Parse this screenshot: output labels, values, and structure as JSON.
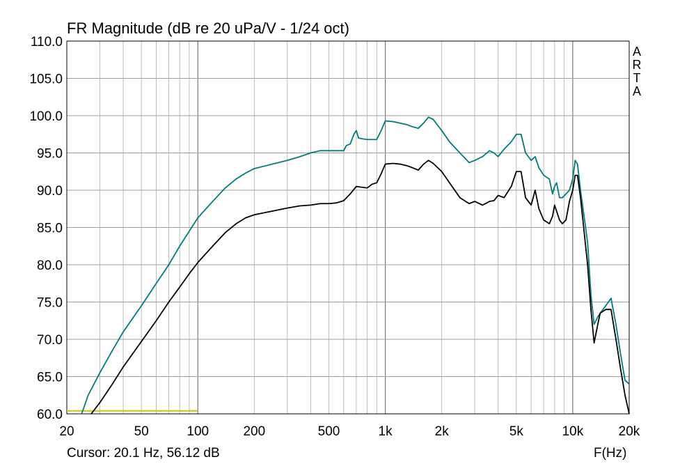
{
  "chart_data": {
    "type": "line",
    "title": "FR Magnitude (dB re 20 uPa/V - 1/24 oct)",
    "xlabel": "F(Hz)",
    "ylabel": "",
    "xscale": "log",
    "xlim": [
      20,
      20000
    ],
    "ylim": [
      60,
      110
    ],
    "grid": true,
    "x_ticks": [
      {
        "value": 20,
        "label": "20"
      },
      {
        "value": 50,
        "label": "50"
      },
      {
        "value": 100,
        "label": "100"
      },
      {
        "value": 200,
        "label": "200"
      },
      {
        "value": 500,
        "label": "500"
      },
      {
        "value": 1000,
        "label": "1k"
      },
      {
        "value": 2000,
        "label": "2k"
      },
      {
        "value": 5000,
        "label": "5k"
      },
      {
        "value": 10000,
        "label": "10k"
      },
      {
        "value": 20000,
        "label": "20k"
      }
    ],
    "y_ticks": [
      {
        "value": 60,
        "label": "60.0"
      },
      {
        "value": 65,
        "label": "65.0"
      },
      {
        "value": 70,
        "label": "70.0"
      },
      {
        "value": 75,
        "label": "75.0"
      },
      {
        "value": 80,
        "label": "80.0"
      },
      {
        "value": 85,
        "label": "85.0"
      },
      {
        "value": 90,
        "label": "90.0"
      },
      {
        "value": 95,
        "label": "95.0"
      },
      {
        "value": 100,
        "label": "100.0"
      },
      {
        "value": 105,
        "label": "105.0"
      },
      {
        "value": 110,
        "label": "110.0"
      }
    ],
    "series": [
      {
        "color": "#007b7b",
        "points": [
          [
            24,
            60
          ],
          [
            26,
            62.5
          ],
          [
            30,
            65.5
          ],
          [
            35,
            68.5
          ],
          [
            40,
            71
          ],
          [
            50,
            74.5
          ],
          [
            60,
            77.5
          ],
          [
            70,
            80
          ],
          [
            80,
            82.5
          ],
          [
            90,
            84.5
          ],
          [
            100,
            86.3
          ],
          [
            120,
            88.5
          ],
          [
            140,
            90.3
          ],
          [
            160,
            91.5
          ],
          [
            180,
            92.3
          ],
          [
            200,
            92.9
          ],
          [
            250,
            93.5
          ],
          [
            300,
            94
          ],
          [
            350,
            94.5
          ],
          [
            400,
            95
          ],
          [
            450,
            95.3
          ],
          [
            500,
            95.3
          ],
          [
            550,
            95.3
          ],
          [
            600,
            95.3
          ],
          [
            620,
            96
          ],
          [
            650,
            96.2
          ],
          [
            680,
            97.5
          ],
          [
            700,
            98
          ],
          [
            720,
            97
          ],
          [
            750,
            96.9
          ],
          [
            800,
            96.8
          ],
          [
            850,
            96.8
          ],
          [
            900,
            96.8
          ],
          [
            950,
            98
          ],
          [
            1000,
            99.3
          ],
          [
            1100,
            99.2
          ],
          [
            1200,
            99
          ],
          [
            1300,
            98.8
          ],
          [
            1400,
            98.5
          ],
          [
            1500,
            98.3
          ],
          [
            1600,
            99
          ],
          [
            1700,
            99.8
          ],
          [
            1800,
            99.5
          ],
          [
            2000,
            98
          ],
          [
            2200,
            96.5
          ],
          [
            2500,
            95
          ],
          [
            2800,
            93.7
          ],
          [
            3000,
            94
          ],
          [
            3300,
            94.5
          ],
          [
            3600,
            95.3
          ],
          [
            3800,
            95
          ],
          [
            4000,
            94.5
          ],
          [
            4300,
            95.5
          ],
          [
            4700,
            96.5
          ],
          [
            5000,
            97.5
          ],
          [
            5300,
            97.5
          ],
          [
            5600,
            95
          ],
          [
            6000,
            94
          ],
          [
            6300,
            94.5
          ],
          [
            6600,
            93
          ],
          [
            7000,
            92
          ],
          [
            7500,
            91.5
          ],
          [
            7800,
            89.5
          ],
          [
            8000,
            90.5
          ],
          [
            8200,
            91
          ],
          [
            8500,
            89
          ],
          [
            8800,
            89
          ],
          [
            9200,
            89.5
          ],
          [
            9600,
            90
          ],
          [
            10000,
            91.5
          ],
          [
            10300,
            94
          ],
          [
            10600,
            93.5
          ],
          [
            11000,
            90
          ],
          [
            12000,
            83
          ],
          [
            12500,
            76
          ],
          [
            13000,
            72
          ],
          [
            13600,
            73
          ],
          [
            14000,
            73.5
          ],
          [
            15000,
            74.5
          ],
          [
            16000,
            75.5
          ],
          [
            17000,
            72
          ],
          [
            18000,
            68
          ],
          [
            19000,
            64.5
          ],
          [
            20000,
            64
          ]
        ]
      },
      {
        "color": "#000000",
        "points": [
          [
            27,
            60
          ],
          [
            30,
            61.5
          ],
          [
            35,
            64
          ],
          [
            40,
            66.3
          ],
          [
            50,
            69.7
          ],
          [
            60,
            72.5
          ],
          [
            70,
            75
          ],
          [
            80,
            77
          ],
          [
            90,
            78.8
          ],
          [
            100,
            80.3
          ],
          [
            120,
            82.5
          ],
          [
            140,
            84.3
          ],
          [
            160,
            85.5
          ],
          [
            180,
            86.3
          ],
          [
            200,
            86.7
          ],
          [
            250,
            87.2
          ],
          [
            300,
            87.6
          ],
          [
            350,
            87.9
          ],
          [
            400,
            88
          ],
          [
            450,
            88.2
          ],
          [
            500,
            88.2
          ],
          [
            550,
            88.3
          ],
          [
            600,
            88.6
          ],
          [
            650,
            89.5
          ],
          [
            700,
            90.5
          ],
          [
            750,
            90.4
          ],
          [
            800,
            90.3
          ],
          [
            850,
            90.8
          ],
          [
            900,
            91
          ],
          [
            950,
            92.2
          ],
          [
            1000,
            93.5
          ],
          [
            1100,
            93.6
          ],
          [
            1200,
            93.5
          ],
          [
            1300,
            93.3
          ],
          [
            1400,
            93
          ],
          [
            1500,
            92.7
          ],
          [
            1600,
            93.5
          ],
          [
            1700,
            94
          ],
          [
            1800,
            93.6
          ],
          [
            2000,
            92.5
          ],
          [
            2200,
            91
          ],
          [
            2500,
            89
          ],
          [
            2800,
            88.2
          ],
          [
            3000,
            88.5
          ],
          [
            3300,
            88
          ],
          [
            3600,
            88.5
          ],
          [
            3800,
            88.6
          ],
          [
            4000,
            89.3
          ],
          [
            4300,
            89
          ],
          [
            4700,
            90.5
          ],
          [
            5000,
            92.5
          ],
          [
            5300,
            92.5
          ],
          [
            5600,
            89
          ],
          [
            6000,
            88
          ],
          [
            6300,
            90
          ],
          [
            6600,
            87.5
          ],
          [
            7000,
            86
          ],
          [
            7500,
            85.5
          ],
          [
            7800,
            86.5
          ],
          [
            8000,
            88
          ],
          [
            8500,
            86
          ],
          [
            8800,
            85.5
          ],
          [
            9200,
            86
          ],
          [
            9600,
            88.5
          ],
          [
            10000,
            90
          ],
          [
            10300,
            92
          ],
          [
            10600,
            92
          ],
          [
            11000,
            89
          ],
          [
            12000,
            80
          ],
          [
            12500,
            74
          ],
          [
            13000,
            69.5
          ],
          [
            13600,
            72
          ],
          [
            14000,
            73.5
          ],
          [
            15000,
            74
          ],
          [
            16000,
            74
          ],
          [
            17000,
            70
          ],
          [
            18000,
            66
          ],
          [
            19000,
            62.5
          ],
          [
            20000,
            60
          ]
        ]
      }
    ],
    "cursor_line": {
      "color": "#c8c800",
      "x_start": 20,
      "x_end": 100,
      "y": 60.4
    }
  },
  "brand_letters": [
    "A",
    "R",
    "T",
    "A"
  ],
  "cursor_text": "Cursor: 20.1 Hz, 56.12 dB"
}
